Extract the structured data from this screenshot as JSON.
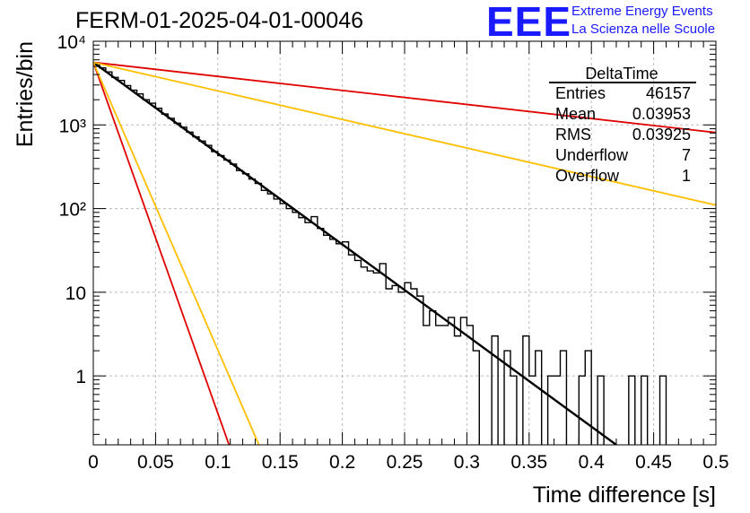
{
  "header": {
    "run_title": "FERM-01-2025-04-01-00046",
    "logo_text": "EEE",
    "logo_line1": "Extreme Energy Events",
    "logo_line2": "La Scienza nelle Scuole"
  },
  "colors": {
    "histogram": "#000000",
    "fit": "#000000",
    "red_lines": "#e00000",
    "orange_lines": "#ffbf00",
    "grid": "#bbbbbb",
    "logo": "#1a1aff"
  },
  "stats_box": {
    "title": "DeltaTime",
    "rows": [
      {
        "label": "Entries",
        "value": "46157"
      },
      {
        "label": "Mean",
        "value": "0.03953"
      },
      {
        "label": "RMS",
        "value": "0.03925"
      },
      {
        "label": "Underflow",
        "value": "7"
      },
      {
        "label": "Overflow",
        "value": "1"
      }
    ]
  },
  "chart_data": {
    "type": "histogram",
    "title": "FERM-01-2025-04-01-00046",
    "xlabel": "Time difference [s]",
    "ylabel": "Entries/bin",
    "xlim": [
      0,
      0.5
    ],
    "ylim": [
      0.15,
      10000
    ],
    "yscale": "log",
    "grid": true,
    "x_ticks": [
      0,
      0.05,
      0.1,
      0.15,
      0.2,
      0.25,
      0.3,
      0.35,
      0.4,
      0.45,
      0.5
    ],
    "x_tick_labels": [
      "0",
      "0.05",
      "0.1",
      "0.15",
      "0.2",
      "0.25",
      "0.3",
      "0.35",
      "0.4",
      "0.45",
      "0.5"
    ],
    "y_ticks": [
      1,
      10,
      100,
      1000,
      10000
    ],
    "y_tick_labels": [
      "1",
      "10",
      "10²",
      "10³",
      "10⁴"
    ],
    "bin_width": 0.005,
    "bin_counts": [
      5400,
      4800,
      4300,
      3700,
      3400,
      2950,
      2600,
      2350,
      2000,
      1820,
      1580,
      1350,
      1200,
      1050,
      940,
      820,
      720,
      640,
      570,
      480,
      430,
      380,
      340,
      285,
      260,
      225,
      200,
      165,
      150,
      130,
      115,
      100,
      90,
      78,
      68,
      80,
      58,
      48,
      43,
      38,
      40,
      28,
      24,
      20,
      18,
      17,
      22,
      11,
      12,
      10,
      13,
      11,
      9,
      4,
      6,
      4,
      4,
      5,
      3,
      5,
      4,
      2,
      0,
      0,
      3,
      0,
      2,
      1,
      0,
      3,
      1,
      2,
      0,
      1,
      1,
      2,
      0,
      0,
      1,
      2,
      0,
      1,
      0,
      0,
      0,
      0,
      1,
      0,
      1,
      0,
      0,
      1,
      0
    ],
    "fit_curves": [
      {
        "kind": "fit",
        "x_range": [
          0,
          0.42
        ],
        "y_start": 5600,
        "y_end": 0.15,
        "color": "#000000"
      },
      {
        "kind": "red-steep",
        "x_range": [
          0,
          0.109
        ],
        "y_start": 5600,
        "y_end": 0.15,
        "color": "#e00000"
      },
      {
        "kind": "red-shallow",
        "x_range": [
          0,
          0.5
        ],
        "y_start": 5600,
        "y_end": 810,
        "color": "#e00000"
      },
      {
        "kind": "orange-steep",
        "x_range": [
          0,
          0.133
        ],
        "y_start": 5600,
        "y_end": 0.15,
        "color": "#ffbf00"
      },
      {
        "kind": "orange-shallow",
        "x_range": [
          0,
          0.5
        ],
        "y_start": 5600,
        "y_end": 110,
        "color": "#ffbf00"
      }
    ]
  }
}
